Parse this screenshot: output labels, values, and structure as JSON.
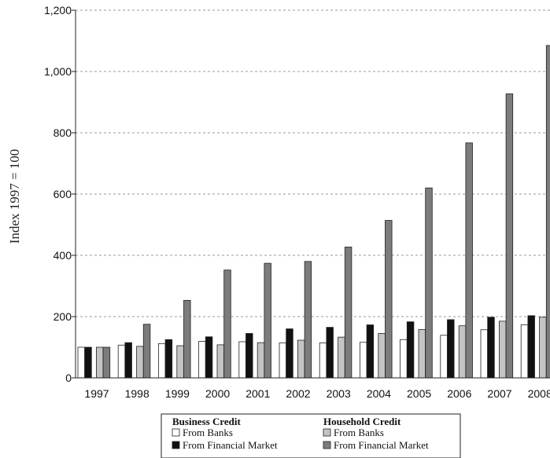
{
  "chart_data": {
    "type": "bar",
    "ylabel": "Index 1997 = 100",
    "ylim": [
      0,
      1200
    ],
    "yticks": [
      0,
      200,
      400,
      600,
      800,
      1000,
      1200
    ],
    "ytick_labels": [
      "0",
      "200",
      "400",
      "600",
      "800",
      "1,000",
      "1,200"
    ],
    "grid": "horizontal dashed",
    "categories": [
      "1997",
      "1998",
      "1999",
      "2000",
      "2001",
      "2002",
      "2003",
      "2004",
      "2005",
      "2006",
      "2007",
      "2008"
    ],
    "series": [
      {
        "name": "From Banks",
        "group": "Business Credit",
        "color": "#ffffff",
        "values": [
          100,
          107,
          112,
          119,
          118,
          114,
          114,
          116,
          125,
          139,
          157,
          173
        ]
      },
      {
        "name": "From Financial Market",
        "group": "Business Credit",
        "color": "#111111",
        "values": [
          100,
          115,
          125,
          134,
          145,
          160,
          165,
          173,
          183,
          190,
          198,
          203
        ]
      },
      {
        "name": "From Banks",
        "group": "Household Credit",
        "color": "#c4c4c4",
        "values": [
          100,
          103,
          105,
          108,
          115,
          123,
          133,
          145,
          158,
          170,
          185,
          198
        ]
      },
      {
        "name": "From Financial Market",
        "group": "Household Credit",
        "color": "#7c7c7c",
        "values": [
          100,
          175,
          253,
          352,
          374,
          380,
          427,
          514,
          620,
          767,
          927,
          1085
        ]
      }
    ],
    "legend": {
      "position": "bottom-center",
      "groups": [
        {
          "title": "Business Credit",
          "items": [
            0,
            1
          ]
        },
        {
          "title": "Household Credit",
          "items": [
            2,
            3
          ]
        }
      ]
    }
  }
}
